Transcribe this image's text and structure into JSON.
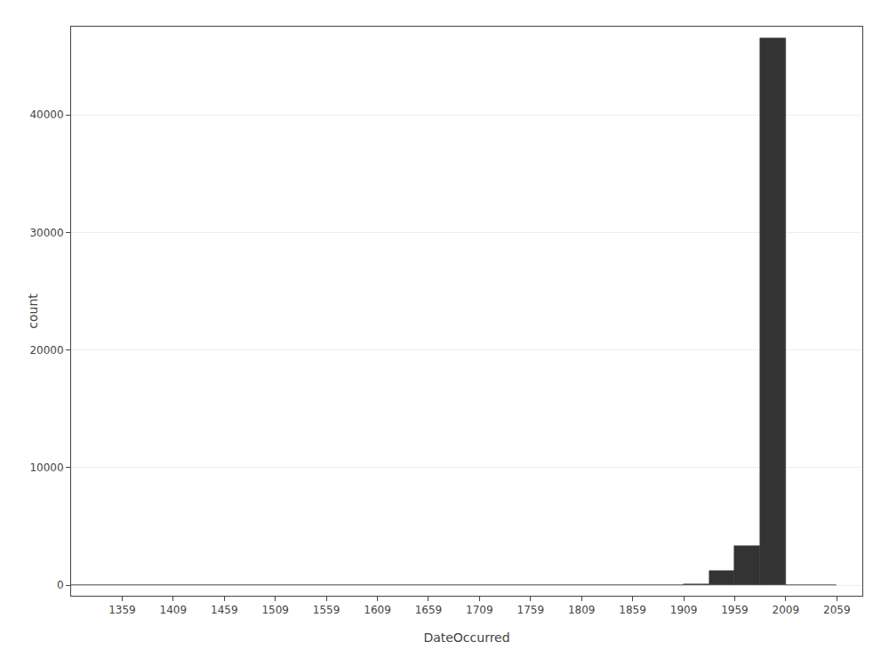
{
  "chart_data": {
    "type": "histogram",
    "xlabel": "DateOccurred",
    "ylabel": "count",
    "bins": [
      1309,
      1909,
      1934,
      1959,
      1984,
      2009,
      2059
    ],
    "values": [
      0,
      100,
      1200,
      3300,
      46500,
      0
    ],
    "color": "#333333",
    "xlim": [
      1309,
      2084
    ],
    "xticks": [
      1359,
      1409,
      1459,
      1509,
      1559,
      1609,
      1659,
      1709,
      1759,
      1809,
      1859,
      1909,
      1959,
      2009,
      2059
    ],
    "ylim": [
      -900,
      47500
    ],
    "yticks": [
      0,
      10000,
      20000,
      30000,
      40000
    ],
    "grid": "y"
  }
}
